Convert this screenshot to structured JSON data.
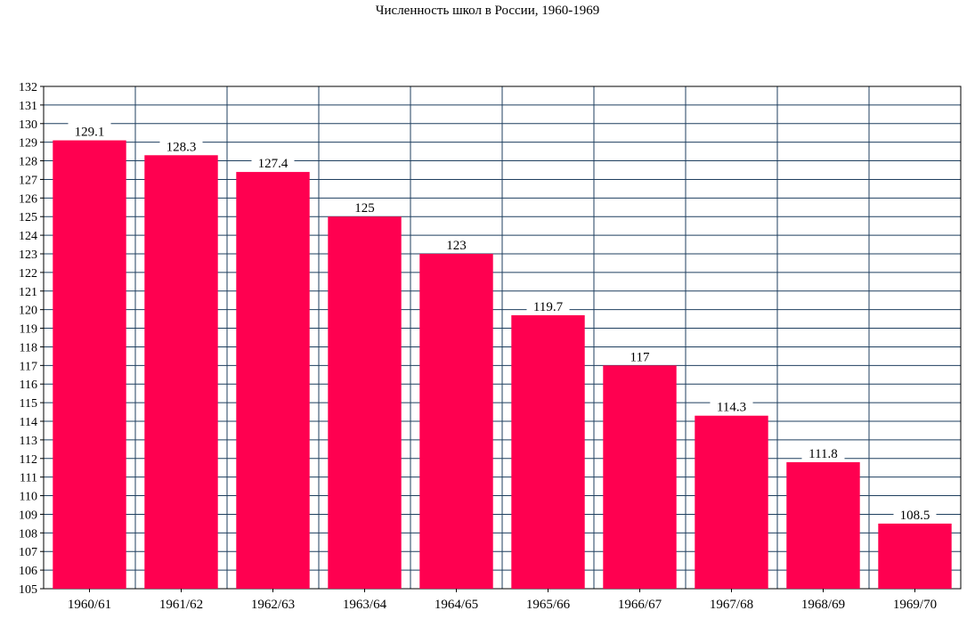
{
  "chart_data": {
    "type": "bar",
    "title": "Численность школ в России, 1960-1969",
    "xlabel": "",
    "ylabel": "",
    "ylim": [
      105,
      132
    ],
    "yticks": [
      105,
      106,
      107,
      108,
      109,
      110,
      111,
      112,
      113,
      114,
      115,
      116,
      117,
      118,
      119,
      120,
      121,
      122,
      123,
      124,
      125,
      126,
      127,
      128,
      129,
      130,
      131,
      132
    ],
    "categories": [
      "1960/61",
      "1961/62",
      "1962/63",
      "1963/64",
      "1964/65",
      "1965/66",
      "1966/67",
      "1967/68",
      "1968/69",
      "1969/70"
    ],
    "values": [
      129.1,
      128.3,
      127.4,
      125,
      123,
      119.7,
      117,
      114.3,
      111.8,
      108.5
    ],
    "data_labels": [
      "129.1",
      "128.3",
      "127.4",
      "125",
      "123",
      "119.7",
      "117",
      "114.3",
      "111.8",
      "108.5"
    ],
    "grid": true,
    "legend": "none",
    "colors": {
      "bar": "#ff0050",
      "grid": "#1f3f5f",
      "axis": "#000000"
    }
  }
}
